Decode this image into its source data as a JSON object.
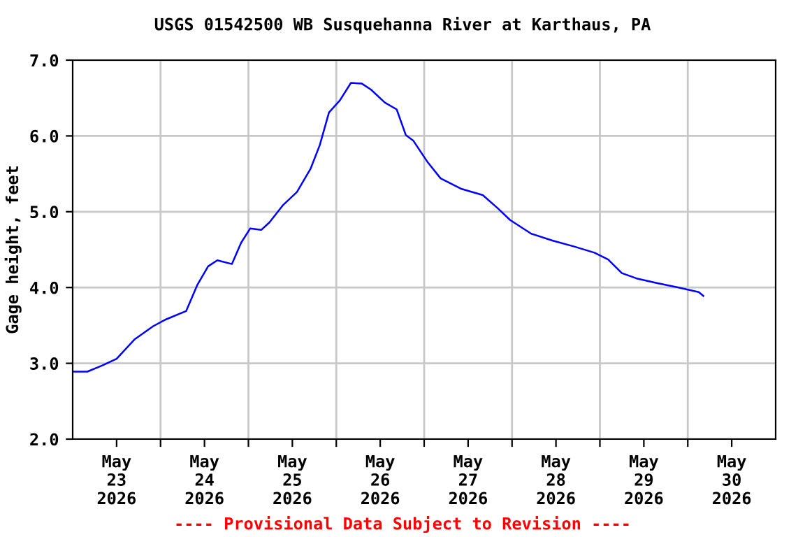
{
  "chart_data": {
    "type": "line",
    "title": "USGS 01542500 WB Susquehanna River at Karthaus, PA",
    "ylabel": "Gage height, feet",
    "annotations": [
      "---- Provisional Data Subject to Revision ----"
    ],
    "x": [
      "2026-05-23T00:00",
      "2026-05-23T04:00",
      "2026-05-23T08:00",
      "2026-05-23T12:00",
      "2026-05-23T17:00",
      "2026-05-23T22:00",
      "2026-05-24T01:30",
      "2026-05-24T07:00",
      "2026-05-24T10:00",
      "2026-05-24T13:00",
      "2026-05-24T15:30",
      "2026-05-24T19:30",
      "2026-05-24T22:00",
      "2026-05-25T00:30",
      "2026-05-25T03:30",
      "2026-05-25T05:45",
      "2026-05-25T09:30",
      "2026-05-25T13:15",
      "2026-05-25T17:00",
      "2026-05-25T19:30",
      "2026-05-25T22:00",
      "2026-05-26T01:00",
      "2026-05-26T04:00",
      "2026-05-26T07:00",
      "2026-05-26T09:30",
      "2026-05-26T13:15",
      "2026-05-26T16:30",
      "2026-05-26T19:00",
      "2026-05-26T21:00",
      "2026-05-27T01:00",
      "2026-05-27T04:30",
      "2026-05-27T10:15",
      "2026-05-27T16:00",
      "2026-05-27T20:00",
      "2026-05-27T23:30",
      "2026-05-28T05:15",
      "2026-05-28T11:00",
      "2026-05-28T17:00",
      "2026-05-28T22:30",
      "2026-05-29T02:15",
      "2026-05-29T06:00",
      "2026-05-29T10:00",
      "2026-05-29T15:30",
      "2026-05-29T21:30",
      "2026-05-30T03:00",
      "2026-05-30T04:15"
    ],
    "series": [
      {
        "color": "#0000ff",
        "values": [
          2.89,
          2.89,
          2.97,
          3.06,
          3.32,
          3.49,
          3.58,
          3.69,
          4.03,
          4.28,
          4.36,
          4.31,
          4.59,
          4.78,
          4.76,
          4.86,
          5.09,
          5.26,
          5.57,
          5.88,
          6.31,
          6.47,
          6.7,
          6.69,
          6.61,
          6.44,
          6.35,
          6.01,
          5.94,
          5.65,
          5.44,
          5.3,
          5.22,
          5.05,
          4.89,
          4.71,
          4.62,
          4.54,
          4.46,
          4.37,
          4.19,
          4.12,
          4.06,
          4.0,
          3.94,
          3.89
        ]
      }
    ],
    "xlim": [
      "2026-05-23T00:00",
      "2026-05-31T00:00"
    ],
    "xticks": [
      {
        "value": "2026-05-24T00:00",
        "label": null
      },
      {
        "value": "2026-05-25T00:00",
        "label": null
      },
      {
        "value": "2026-05-26T00:00",
        "label": null
      },
      {
        "value": "2026-05-27T00:00",
        "label": null
      },
      {
        "value": "2026-05-28T00:00",
        "label": null
      },
      {
        "value": "2026-05-29T00:00",
        "label": null
      },
      {
        "value": "2026-05-30T00:00",
        "label": null
      },
      {
        "value": "2026-05-23T12:00",
        "label": "May\n23\n2026"
      },
      {
        "value": "2026-05-24T12:00",
        "label": "May\n24\n2026"
      },
      {
        "value": "2026-05-25T12:00",
        "label": "May\n25\n2026"
      },
      {
        "value": "2026-05-26T12:00",
        "label": "May\n26\n2026"
      },
      {
        "value": "2026-05-27T12:00",
        "label": "May\n27\n2026"
      },
      {
        "value": "2026-05-28T12:00",
        "label": "May\n28\n2026"
      },
      {
        "value": "2026-05-29T12:00",
        "label": "May\n29\n2026"
      },
      {
        "value": "2026-05-30T12:00",
        "label": "May\n30\n2026"
      }
    ],
    "ylim": [
      2.0,
      7.0
    ],
    "yticks": [
      {
        "value": 2,
        "label": "2.0"
      },
      {
        "value": 3,
        "label": "3.0"
      },
      {
        "value": 4,
        "label": "4.0"
      },
      {
        "value": 5,
        "label": "5.0"
      },
      {
        "value": 6,
        "label": "6.0"
      },
      {
        "value": 7,
        "label": "7.0"
      }
    ],
    "grid": true,
    "line_style": "solid",
    "marker": "none"
  }
}
